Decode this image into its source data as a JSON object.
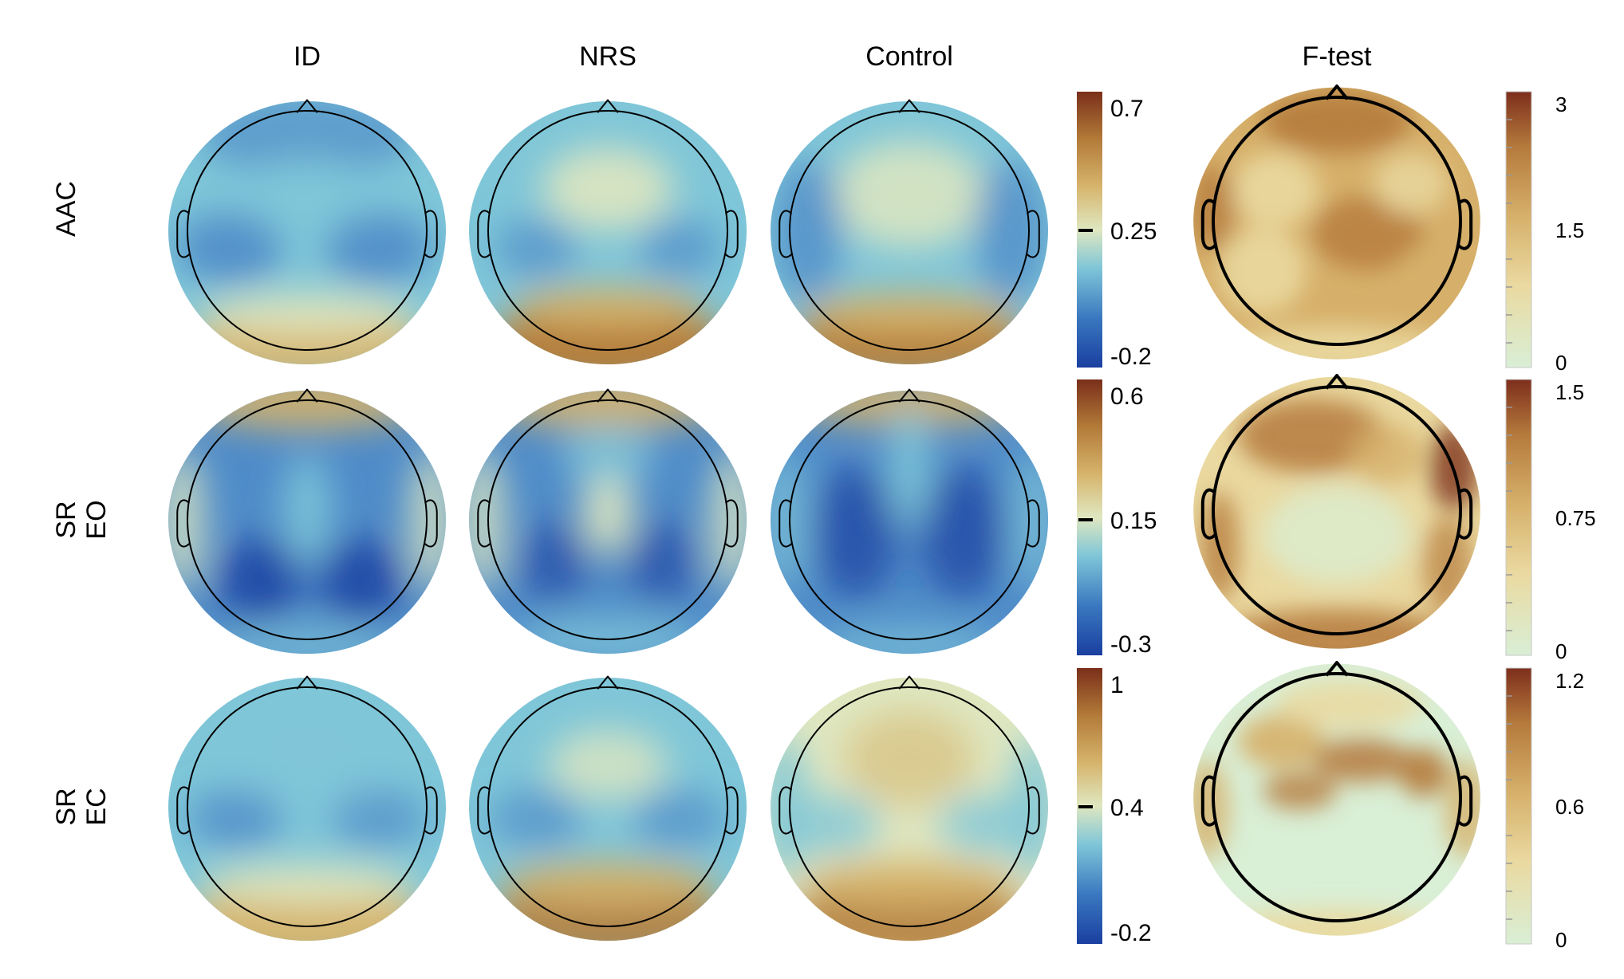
{
  "columns": [
    "ID",
    "NRS",
    "Control",
    "F-test"
  ],
  "rows": [
    {
      "label_lines": [
        "AAC"
      ]
    },
    {
      "label_lines": [
        "SR",
        "EO"
      ]
    },
    {
      "label_lines": [
        "SR",
        "EC"
      ]
    }
  ],
  "colorbars": [
    {
      "row": 0,
      "kind": "diverging",
      "max": "0.7",
      "mid": "0.25",
      "min": "-0.2"
    },
    {
      "row": 1,
      "kind": "diverging",
      "max": "0.6",
      "mid": "0.15",
      "min": "-0.3"
    },
    {
      "row": 2,
      "kind": "diverging",
      "max": "1",
      "mid": "0.4",
      "min": "-0.2"
    },
    {
      "row": 0,
      "kind": "sequential",
      "max": "3",
      "mid": "1.5",
      "min": "0"
    },
    {
      "row": 1,
      "kind": "sequential",
      "max": "1.5",
      "mid": "0.75",
      "min": "0"
    },
    {
      "row": 2,
      "kind": "sequential",
      "max": "1.2",
      "mid": "0.6",
      "min": "0"
    }
  ],
  "colors": {
    "diverging_scale": [
      "#1a3fa0",
      "#4f8cc9",
      "#7fc6d8",
      "#dfe7c0",
      "#d6b36a",
      "#b27a38",
      "#7a2f1a"
    ],
    "sequential_scale": [
      "#d9efd6",
      "#ead9a0",
      "#d6b06a",
      "#b57a3c",
      "#7d2e1c"
    ]
  }
}
